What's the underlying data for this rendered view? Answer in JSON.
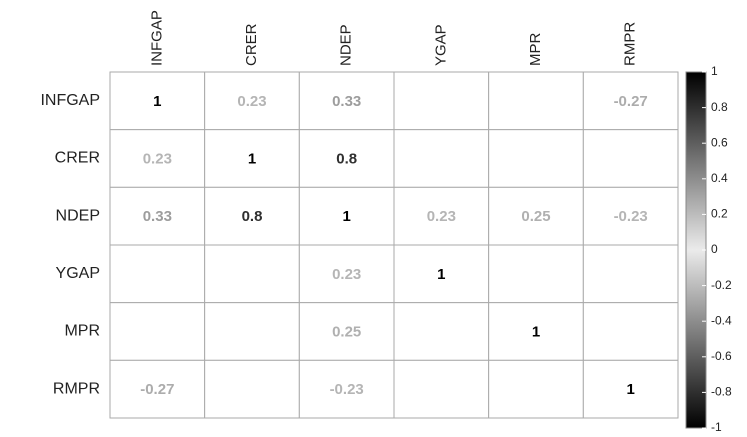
{
  "chart_data": {
    "type": "heatmap",
    "x_categories": [
      "INFGAP",
      "CRER",
      "NDEP",
      "YGAP",
      "MPR",
      "RMPR"
    ],
    "y_categories": [
      "INFGAP",
      "CRER",
      "NDEP",
      "YGAP",
      "MPR",
      "RMPR"
    ],
    "values": [
      [
        1,
        0.23,
        0.33,
        null,
        null,
        -0.27
      ],
      [
        0.23,
        1,
        0.8,
        null,
        null,
        null
      ],
      [
        0.33,
        0.8,
        1,
        0.23,
        0.25,
        -0.23
      ],
      [
        null,
        null,
        0.23,
        1,
        null,
        null
      ],
      [
        null,
        null,
        0.25,
        null,
        1,
        null
      ],
      [
        -0.27,
        null,
        -0.23,
        null,
        null,
        1
      ]
    ],
    "clim": [
      -1,
      1
    ],
    "cticks": [
      1,
      0.8,
      0.6,
      0.4,
      0.2,
      0,
      -0.2,
      -0.4,
      -0.6,
      -0.8,
      -1
    ]
  }
}
